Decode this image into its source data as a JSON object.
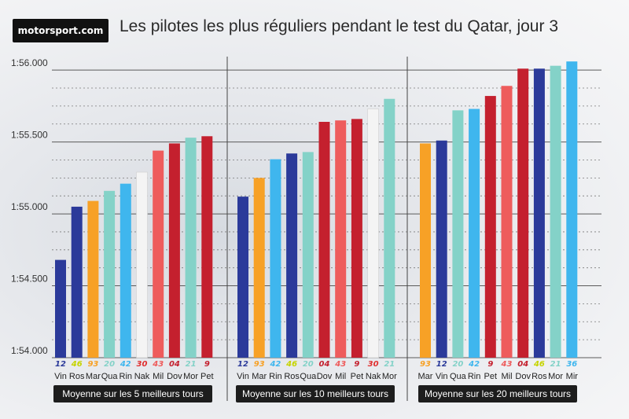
{
  "header": {
    "logo_text": "motorsport.com",
    "title": "Les pilotes les plus réguliers pendant le test du Qatar, jour 3"
  },
  "colors": {
    "yamaha_blue": "#2b3a9a",
    "cyan": "#3fb6ee",
    "orange": "#f7a126",
    "teal": "#84d2c8",
    "light_red": "#ee5c5c",
    "red": "#c4202e",
    "white_bar": "#f4f4f4",
    "label_bg": "#1d1d1d"
  },
  "chart_data": {
    "type": "bar",
    "y_tick_labels": [
      "1:54.000",
      "1:54.500",
      "1:55.000",
      "1:55.500",
      "1:56.000"
    ],
    "ylim": [
      114.0,
      116.05
    ],
    "groups": [
      {
        "label": "Moyenne sur les 5 meilleurs tours",
        "riders": [
          "Vin",
          "Ros",
          "Mar",
          "Qua",
          "Rin",
          "Nak",
          "Mil",
          "Dov",
          "Mor",
          "Pet"
        ],
        "numbers": [
          "12",
          "46",
          "93",
          "20",
          "42",
          "30",
          "43",
          "04",
          "21",
          "9"
        ],
        "colors": [
          "#2b3a9a",
          "#2b3a9a",
          "#f7a126",
          "#84d2c8",
          "#3fb6ee",
          "#f4f4f4",
          "#ee5c5c",
          "#c4202e",
          "#84d2c8",
          "#c4202e"
        ],
        "values": [
          114.68,
          115.05,
          115.09,
          115.16,
          115.21,
          115.29,
          115.44,
          115.49,
          115.53,
          115.54
        ]
      },
      {
        "label": "Moyenne sur les 10 meilleurs tours",
        "riders": [
          "Vin",
          "Mar",
          "Rin",
          "Ros",
          "Qua",
          "Dov",
          "Mil",
          "Pet",
          "Nak",
          "Mor"
        ],
        "numbers": [
          "12",
          "93",
          "42",
          "46",
          "20",
          "04",
          "43",
          "9",
          "30",
          "21"
        ],
        "colors": [
          "#2b3a9a",
          "#f7a126",
          "#3fb6ee",
          "#2b3a9a",
          "#84d2c8",
          "#c4202e",
          "#ee5c5c",
          "#c4202e",
          "#f4f4f4",
          "#84d2c8"
        ],
        "values": [
          115.12,
          115.25,
          115.38,
          115.42,
          115.43,
          115.64,
          115.65,
          115.66,
          115.73,
          115.8
        ]
      },
      {
        "label": "Moyenne sur les 20 meilleurs tours",
        "riders": [
          "Mar",
          "Vin",
          "Qua",
          "Rin",
          "Pet",
          "Mil",
          "Dov",
          "Ros",
          "Mor",
          "Mir"
        ],
        "numbers": [
          "93",
          "12",
          "20",
          "42",
          "9",
          "43",
          "04",
          "46",
          "21",
          "36"
        ],
        "colors": [
          "#f7a126",
          "#2b3a9a",
          "#84d2c8",
          "#3fb6ee",
          "#c4202e",
          "#ee5c5c",
          "#c4202e",
          "#2b3a9a",
          "#84d2c8",
          "#3fb6ee"
        ],
        "values": [
          115.49,
          115.51,
          115.72,
          115.73,
          115.82,
          115.89,
          116.01,
          116.01,
          116.03,
          116.06
        ]
      }
    ]
  }
}
